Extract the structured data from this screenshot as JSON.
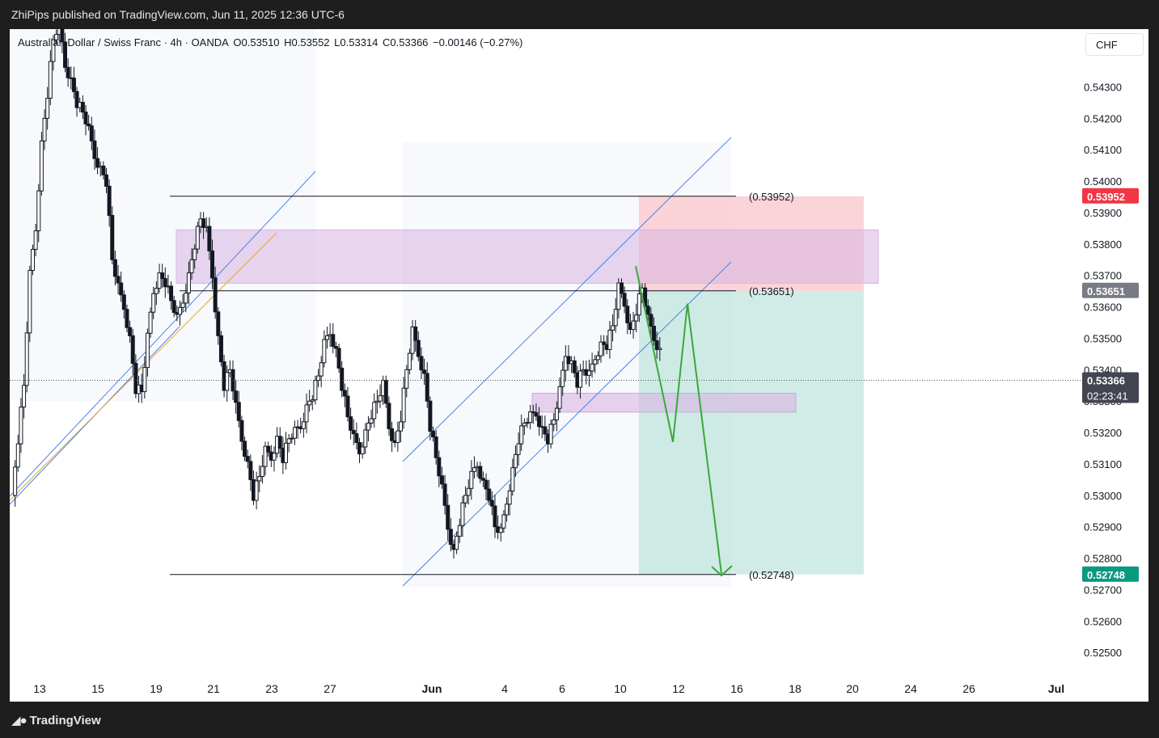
{
  "header": {
    "published": "ZhiPips published on TradingView.com, Jun 11, 2025 12:36 UTC-6"
  },
  "legend": {
    "symbol": "Australian Dollar / Swiss Franc · 4h · OANDA",
    "open": "O0.53510",
    "high": "H0.53552",
    "low": "L0.53314",
    "close": "C0.53366",
    "change": "−0.00146 (−0.27%)"
  },
  "currency": "CHF",
  "footer": {
    "brand": "TradingView"
  },
  "colors": {
    "red_label": "#f23645",
    "gray_label": "#787b86",
    "green_label": "#089981",
    "dark_label": "#434651",
    "candle": "#131722",
    "channel": "#4a84e6",
    "orange": "#f7a21b",
    "projection": "#3aa83a"
  },
  "chart_data": {
    "type": "candlestick",
    "title": "Australian Dollar / Swiss Franc · 4h · OANDA",
    "y_axis": {
      "min": 0.5245,
      "max": 0.5445,
      "ticks": [
        "0.54300",
        "0.54200",
        "0.54100",
        "0.54000",
        "0.53900",
        "0.53800",
        "0.53700",
        "0.53600",
        "0.53500",
        "0.53400",
        "0.53300",
        "0.53200",
        "0.53100",
        "0.53000",
        "0.52900",
        "0.52800",
        "0.52700",
        "0.52600",
        "0.52500"
      ]
    },
    "x_axis": {
      "ticks": [
        "13",
        "15",
        "19",
        "21",
        "23",
        "27",
        "Jun",
        "4",
        "6",
        "10",
        "12",
        "16",
        "18",
        "20",
        "24",
        "26",
        "Jul"
      ]
    },
    "price_labels": [
      {
        "value": "0.53952",
        "kind": "red"
      },
      {
        "value": "0.53651",
        "kind": "gray"
      },
      {
        "value": "0.53366",
        "kind": "dark",
        "sub": "02:23:41"
      },
      {
        "value": "0.52748",
        "kind": "green"
      }
    ],
    "levels": [
      {
        "label": "(0.53952)",
        "price": 0.53952
      },
      {
        "label": "(0.53651)",
        "price": 0.53651
      },
      {
        "label": "(0.52748)",
        "price": 0.52748
      }
    ],
    "last_price": 0.53366,
    "candle_anchors": [
      [
        0,
        0.53
      ],
      [
        4,
        0.5318
      ],
      [
        8,
        0.5335
      ],
      [
        12,
        0.537
      ],
      [
        16,
        0.5385
      ],
      [
        20,
        0.5412
      ],
      [
        24,
        0.5428
      ],
      [
        28,
        0.5445
      ],
      [
        32,
        0.545
      ],
      [
        36,
        0.5437
      ],
      [
        40,
        0.5432
      ],
      [
        44,
        0.5425
      ],
      [
        48,
        0.5422
      ],
      [
        52,
        0.5416
      ],
      [
        56,
        0.5408
      ],
      [
        60,
        0.5404
      ],
      [
        64,
        0.54
      ],
      [
        68,
        0.5375
      ],
      [
        72,
        0.5366
      ],
      [
        76,
        0.536
      ],
      [
        80,
        0.535
      ],
      [
        84,
        0.5334
      ],
      [
        88,
        0.5333
      ],
      [
        92,
        0.535
      ],
      [
        96,
        0.5365
      ],
      [
        100,
        0.537
      ],
      [
        104,
        0.5368
      ],
      [
        108,
        0.5362
      ],
      [
        112,
        0.5356
      ],
      [
        116,
        0.5362
      ],
      [
        120,
        0.537
      ],
      [
        124,
        0.538
      ],
      [
        128,
        0.5388
      ],
      [
        132,
        0.5384
      ],
      [
        136,
        0.537
      ],
      [
        140,
        0.535
      ],
      [
        144,
        0.5335
      ],
      [
        148,
        0.534
      ],
      [
        152,
        0.5328
      ],
      [
        156,
        0.5318
      ],
      [
        160,
        0.531
      ],
      [
        164,
        0.53
      ],
      [
        168,
        0.5306
      ],
      [
        172,
        0.5314
      ],
      [
        176,
        0.5312
      ],
      [
        180,
        0.5318
      ],
      [
        184,
        0.5312
      ],
      [
        188,
        0.5318
      ],
      [
        192,
        0.532
      ],
      [
        196,
        0.5322
      ],
      [
        200,
        0.5328
      ],
      [
        204,
        0.5332
      ],
      [
        208,
        0.5338
      ],
      [
        212,
        0.5348
      ],
      [
        216,
        0.5352
      ],
      [
        220,
        0.5346
      ],
      [
        224,
        0.5335
      ],
      [
        228,
        0.5325
      ],
      [
        232,
        0.5318
      ],
      [
        236,
        0.5314
      ],
      [
        240,
        0.532
      ],
      [
        244,
        0.5326
      ],
      [
        248,
        0.533
      ],
      [
        252,
        0.5335
      ],
      [
        256,
        0.5322
      ],
      [
        260,
        0.5316
      ],
      [
        264,
        0.5325
      ],
      [
        268,
        0.534
      ],
      [
        272,
        0.5352
      ],
      [
        276,
        0.5345
      ],
      [
        280,
        0.5338
      ],
      [
        284,
        0.5322
      ],
      [
        288,
        0.5312
      ],
      [
        292,
        0.5302
      ],
      [
        296,
        0.529
      ],
      [
        300,
        0.5282
      ],
      [
        304,
        0.5292
      ],
      [
        308,
        0.53
      ],
      [
        312,
        0.5306
      ],
      [
        316,
        0.531
      ],
      [
        320,
        0.5304
      ],
      [
        324,
        0.53
      ],
      [
        328,
        0.529
      ],
      [
        332,
        0.5288
      ],
      [
        336,
        0.5298
      ],
      [
        340,
        0.5308
      ],
      [
        344,
        0.5318
      ],
      [
        348,
        0.5323
      ],
      [
        352,
        0.5325
      ],
      [
        356,
        0.5326
      ],
      [
        360,
        0.5321
      ],
      [
        364,
        0.5318
      ],
      [
        368,
        0.5324
      ],
      [
        372,
        0.5333
      ],
      [
        376,
        0.5345
      ],
      [
        380,
        0.5342
      ],
      [
        384,
        0.5336
      ],
      [
        388,
        0.534
      ],
      [
        392,
        0.5338
      ],
      [
        396,
        0.5344
      ],
      [
        400,
        0.5348
      ],
      [
        404,
        0.5348
      ],
      [
        408,
        0.5354
      ],
      [
        412,
        0.5366
      ],
      [
        416,
        0.5361
      ],
      [
        420,
        0.5352
      ],
      [
        424,
        0.5359
      ],
      [
        428,
        0.5366
      ],
      [
        432,
        0.5356
      ],
      [
        436,
        0.535
      ],
      [
        440,
        0.5346
      ],
      [
        444,
        0.5338
      ]
    ],
    "projection_path": [
      [
        0.5373,
        0.0
      ],
      [
        0.5317,
        0.16
      ],
      [
        0.5361,
        0.24
      ],
      [
        0.5275,
        0.4
      ]
    ],
    "zones": {
      "stop": {
        "top": 0.53952,
        "bottom": 0.53651
      },
      "target": {
        "top": 0.53651,
        "bottom": 0.52748
      },
      "supply": {
        "top": 0.53845,
        "bottom": 0.53675
      },
      "demand": {
        "top": 0.53325,
        "bottom": 0.53265
      }
    }
  }
}
